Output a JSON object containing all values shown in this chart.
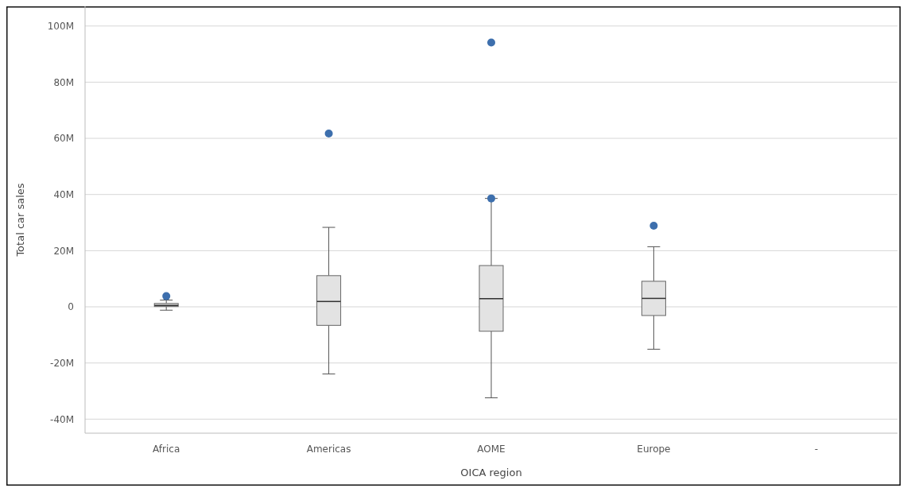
{
  "chart_data": {
    "type": "box",
    "xlabel": "OICA region",
    "ylabel": "Total car sales",
    "categories": [
      "Africa",
      "Americas",
      "AOME",
      "Europe",
      "-"
    ],
    "boxes": [
      {
        "low": -1.2,
        "q1": 0.1,
        "median": 0.5,
        "q3": 1.2,
        "high": 2.4
      },
      {
        "low": -23.9,
        "q1": -6.6,
        "median": 1.9,
        "q3": 11.1,
        "high": 28.3
      },
      {
        "low": -32.4,
        "q1": -8.7,
        "median": 2.9,
        "q3": 14.7,
        "high": 38.6
      },
      {
        "low": -15.1,
        "q1": -3.1,
        "median": 3.0,
        "q3": 9.1,
        "high": 21.4
      },
      null
    ],
    "color": "#e3e3e3",
    "series": [
      {
        "type": "scatter",
        "color": "#3d6fad",
        "x": [
          "Africa",
          "Americas",
          "AOME",
          "AOME",
          "Europe"
        ],
        "values": [
          3.8,
          61.7,
          94.1,
          38.6,
          28.9
        ]
      }
    ],
    "marker": "circle",
    "ylim": [
      -45,
      107
    ],
    "yticks": [
      {
        "value": -40,
        "label": "-40M"
      },
      {
        "value": -20,
        "label": "-20M"
      },
      {
        "value": 0,
        "label": "0"
      },
      {
        "value": 20,
        "label": "20M"
      },
      {
        "value": 40,
        "label": "40M"
      },
      {
        "value": 60,
        "label": "60M"
      },
      {
        "value": 80,
        "label": "80M"
      },
      {
        "value": 100,
        "label": "100M"
      }
    ],
    "grid": "y"
  }
}
